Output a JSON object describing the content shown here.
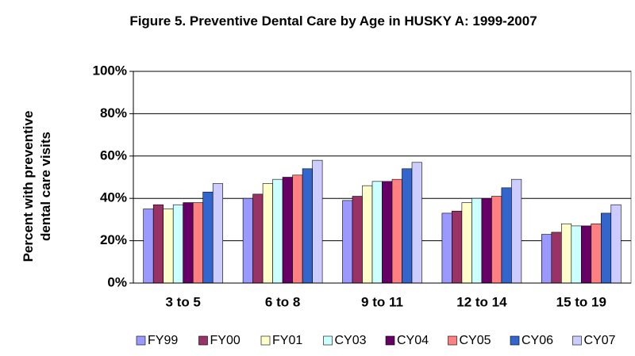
{
  "chart_data": {
    "type": "bar",
    "title": "Figure 5. Preventive Dental Care by Age in HUSKY A: 1999-2007",
    "y_label": "Percent with preventive dental care visits",
    "categories": [
      "3 to 5",
      "6 to 8",
      "9 to 11",
      "12 to 14",
      "15 to 19"
    ],
    "series": [
      {
        "name": "FY99",
        "color": "#9999ff",
        "values": [
          35,
          40,
          39,
          33,
          23
        ]
      },
      {
        "name": "FY00",
        "color": "#993366",
        "values": [
          37,
          42,
          41,
          34,
          24
        ]
      },
      {
        "name": "FY01",
        "color": "#ffffcc",
        "values": [
          35,
          47,
          46,
          38,
          28
        ]
      },
      {
        "name": "CY03",
        "color": "#ccffff",
        "values": [
          37,
          49,
          48,
          40,
          27
        ]
      },
      {
        "name": "CY04",
        "color": "#660066",
        "values": [
          38,
          50,
          48,
          40,
          27
        ]
      },
      {
        "name": "CY05",
        "color": "#ff8080",
        "values": [
          38,
          51,
          49,
          41,
          28
        ]
      },
      {
        "name": "CY06",
        "color": "#3366cc",
        "values": [
          43,
          54,
          54,
          45,
          33
        ]
      },
      {
        "name": "CY07",
        "color": "#ccccff",
        "values": [
          47,
          58,
          57,
          49,
          37
        ]
      }
    ],
    "ylim": [
      0,
      100
    ],
    "yticks": [
      {
        "value": 0,
        "label": "0%"
      },
      {
        "value": 20,
        "label": "20%"
      },
      {
        "value": 40,
        "label": "40%"
      },
      {
        "value": 60,
        "label": "60%"
      },
      {
        "value": 80,
        "label": "80%"
      },
      {
        "value": 100,
        "label": "100%"
      }
    ],
    "grid": true,
    "legend": "bottom"
  }
}
